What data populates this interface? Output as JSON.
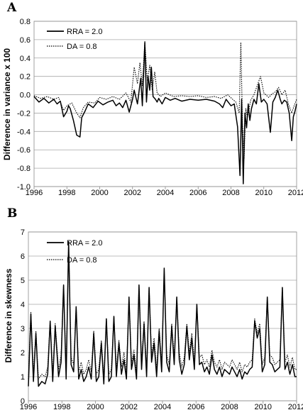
{
  "chart_data": [
    {
      "panel": "A",
      "type": "line",
      "ylabel": "Difference in variance x 100",
      "ylim": [
        -1.0,
        0.8
      ],
      "yticks": [
        -1.0,
        -0.8,
        -0.6,
        -0.4,
        -0.2,
        0.0,
        0.2,
        0.4,
        0.6,
        0.8
      ],
      "ytick_labels": [
        "-1.0",
        "-0.8",
        "-0.6",
        "-0.4",
        "-0.2",
        "0.0",
        "0.2",
        "0.4",
        "0.6",
        "0.8"
      ],
      "xlim": [
        1996,
        2012
      ],
      "xticks": [
        1996,
        1998,
        2000,
        2002,
        2004,
        2006,
        2008,
        2010,
        2012
      ],
      "xtick_labels": [
        "1996",
        "1998",
        "2000",
        "2002",
        "2004",
        "2006",
        "2008",
        "2010",
        "2012"
      ],
      "grid": "horizontal",
      "legend_position": "top-left",
      "series": [
        {
          "name": "RRA = 2.0",
          "style": "solid",
          "x": [
            1996.0,
            1996.3,
            1996.6,
            1996.9,
            1997.2,
            1997.4,
            1997.6,
            1997.8,
            1998.0,
            1998.1,
            1998.2,
            1998.4,
            1998.6,
            1998.8,
            1998.9,
            1999.1,
            1999.3,
            1999.6,
            1999.9,
            2000.2,
            2000.5,
            2000.8,
            2001.0,
            2001.2,
            2001.4,
            2001.6,
            2001.8,
            2002.0,
            2002.1,
            2002.3,
            2002.5,
            2002.6,
            2002.75,
            2002.85,
            2002.95,
            2003.05,
            2003.15,
            2003.25,
            2003.4,
            2003.5,
            2003.6,
            2003.8,
            2004.0,
            2004.3,
            2004.6,
            2005.0,
            2005.5,
            2006.0,
            2006.5,
            2007.0,
            2007.3,
            2007.5,
            2007.7,
            2008.0,
            2008.2,
            2008.4,
            2008.55,
            2008.65,
            2008.75,
            2008.85,
            2008.95,
            2009.05,
            2009.15,
            2009.25,
            2009.4,
            2009.55,
            2009.7,
            2009.85,
            2010.0,
            2010.2,
            2010.4,
            2010.55,
            2010.7,
            2010.85,
            2011.0,
            2011.1,
            2011.25,
            2011.4,
            2011.55,
            2011.7,
            2011.8,
            2011.9,
            2012.0
          ],
          "y": [
            -0.02,
            -0.08,
            -0.04,
            -0.09,
            -0.05,
            -0.1,
            -0.07,
            -0.24,
            -0.18,
            -0.12,
            -0.15,
            -0.28,
            -0.44,
            -0.46,
            -0.25,
            -0.18,
            -0.1,
            -0.14,
            -0.07,
            -0.11,
            -0.08,
            -0.06,
            -0.12,
            -0.09,
            -0.14,
            -0.06,
            -0.19,
            -0.05,
            0.05,
            -0.1,
            0.18,
            -0.12,
            0.57,
            -0.08,
            0.2,
            0.05,
            0.3,
            -0.02,
            -0.05,
            -0.08,
            -0.04,
            -0.1,
            -0.03,
            -0.06,
            -0.04,
            -0.07,
            -0.05,
            -0.06,
            -0.05,
            -0.07,
            -0.1,
            -0.14,
            -0.05,
            -0.12,
            -0.1,
            -0.35,
            -0.88,
            -0.05,
            -0.97,
            -0.2,
            -0.36,
            -0.1,
            -0.28,
            -0.15,
            -0.05,
            -0.1,
            0.12,
            -0.08,
            -0.05,
            -0.1,
            -0.41,
            -0.08,
            -0.03,
            0.05,
            -0.05,
            -0.1,
            -0.06,
            -0.08,
            -0.2,
            -0.5,
            -0.24,
            -0.18,
            -0.1
          ]
        },
        {
          "name": "DA = 0.8",
          "style": "dotted",
          "x": [
            1996.0,
            1996.4,
            1996.8,
            1997.2,
            1997.5,
            1997.8,
            1998.0,
            1998.3,
            1998.6,
            1998.8,
            1999.0,
            1999.3,
            1999.7,
            2000.0,
            2000.4,
            2000.8,
            2001.2,
            2001.6,
            2001.9,
            2002.1,
            2002.3,
            2002.45,
            2002.6,
            2002.75,
            2002.9,
            2003.05,
            2003.2,
            2003.35,
            2003.5,
            2003.7,
            2004.0,
            2004.5,
            2005.0,
            2005.5,
            2006.0,
            2006.5,
            2007.0,
            2007.4,
            2007.8,
            2008.1,
            2008.3,
            2008.5,
            2008.6,
            2008.7,
            2008.8,
            2008.9,
            2009.0,
            2009.2,
            2009.4,
            2009.6,
            2009.8,
            2010.0,
            2010.3,
            2010.5,
            2010.7,
            2010.9,
            2011.1,
            2011.3,
            2011.5,
            2011.7,
            2011.85,
            2012.0
          ],
          "y": [
            -0.01,
            -0.04,
            -0.02,
            -0.05,
            -0.03,
            -0.17,
            -0.12,
            -0.09,
            -0.2,
            -0.25,
            -0.14,
            -0.08,
            -0.09,
            -0.03,
            -0.05,
            -0.02,
            -0.05,
            0.02,
            -0.08,
            0.3,
            0.12,
            0.35,
            0.1,
            0.58,
            0.15,
            0.32,
            0.05,
            0.25,
            0.02,
            -0.02,
            0.02,
            -0.02,
            -0.01,
            -0.02,
            -0.01,
            -0.03,
            -0.02,
            -0.04,
            0.0,
            -0.05,
            -0.08,
            -0.2,
            0.57,
            -0.3,
            -0.7,
            -0.15,
            -0.25,
            -0.06,
            0.0,
            0.1,
            0.2,
            0.02,
            -0.03,
            0.01,
            0.03,
            0.08,
            0.0,
            0.05,
            -0.1,
            -0.2,
            -0.12,
            -0.05
          ]
        }
      ]
    },
    {
      "panel": "B",
      "type": "line",
      "ylabel": "Difference in skewness",
      "ylim": [
        0,
        7
      ],
      "yticks": [
        0,
        1,
        2,
        3,
        4,
        5,
        6,
        7
      ],
      "ytick_labels": [
        "0",
        "1",
        "2",
        "3",
        "4",
        "5",
        "6",
        "7"
      ],
      "xlim": [
        1996,
        2012
      ],
      "xticks": [
        1996,
        1998,
        2000,
        2002,
        2004,
        2006,
        2008,
        2010,
        2012
      ],
      "xtick_labels": [
        "1996",
        "1998",
        "2000",
        "2002",
        "2004",
        "2006",
        "2008",
        "2010",
        "2012"
      ],
      "grid": "horizontal",
      "legend_position": "top-left",
      "series": [
        {
          "name": "RRA = 2.0",
          "style": "solid",
          "x": [
            1996.0,
            1996.15,
            1996.3,
            1996.45,
            1996.6,
            1996.8,
            1997.0,
            1997.15,
            1997.3,
            1997.45,
            1997.6,
            1997.8,
            1997.95,
            1998.1,
            1998.25,
            1998.4,
            1998.55,
            1998.7,
            1998.85,
            1999.0,
            1999.15,
            1999.3,
            1999.45,
            1999.6,
            1999.75,
            1999.9,
            2000.05,
            2000.2,
            2000.35,
            2000.5,
            2000.65,
            2000.8,
            2000.95,
            2001.1,
            2001.25,
            2001.4,
            2001.55,
            2001.7,
            2001.85,
            2002.0,
            2002.15,
            2002.3,
            2002.45,
            2002.6,
            2002.75,
            2002.9,
            2003.05,
            2003.2,
            2003.35,
            2003.5,
            2003.65,
            2003.8,
            2003.95,
            2004.1,
            2004.25,
            2004.4,
            2004.55,
            2004.7,
            2004.85,
            2005.0,
            2005.15,
            2005.3,
            2005.45,
            2005.6,
            2005.75,
            2005.9,
            2006.05,
            2006.2,
            2006.35,
            2006.5,
            2006.65,
            2006.8,
            2006.95,
            2007.1,
            2007.25,
            2007.4,
            2007.55,
            2007.7,
            2007.85,
            2008.0,
            2008.15,
            2008.3,
            2008.45,
            2008.6,
            2008.75,
            2008.9,
            2009.05,
            2009.2,
            2009.35,
            2009.5,
            2009.65,
            2009.8,
            2009.95,
            2010.1,
            2010.25,
            2010.4,
            2010.55,
            2010.7,
            2010.85,
            2011.0,
            2011.15,
            2011.3,
            2011.45,
            2011.6,
            2011.75,
            2011.9,
            2012.0
          ],
          "y": [
            0.6,
            3.6,
            0.8,
            2.8,
            0.6,
            0.8,
            0.7,
            1.1,
            3.3,
            0.8,
            3.1,
            1.0,
            1.6,
            4.8,
            0.9,
            6.6,
            1.5,
            1.2,
            3.9,
            0.9,
            1.3,
            0.8,
            1.0,
            1.4,
            0.9,
            2.8,
            0.8,
            1.0,
            2.4,
            0.7,
            3.4,
            0.8,
            1.0,
            3.5,
            1.0,
            2.4,
            1.1,
            1.7,
            0.9,
            4.3,
            1.3,
            1.9,
            0.9,
            4.8,
            1.3,
            3.2,
            1.0,
            4.7,
            1.6,
            2.4,
            1.0,
            2.9,
            1.2,
            5.5,
            1.6,
            1.2,
            3.1,
            1.5,
            4.3,
            1.7,
            1.1,
            1.5,
            3.1,
            1.7,
            2.6,
            1.3,
            4.0,
            1.5,
            1.6,
            1.2,
            1.4,
            1.1,
            1.9,
            1.3,
            1.1,
            1.4,
            1.0,
            1.3,
            1.2,
            1.1,
            1.4,
            1.2,
            1.0,
            1.3,
            0.9,
            1.2,
            1.1,
            1.3,
            1.4,
            3.3,
            2.6,
            3.0,
            1.2,
            1.5,
            4.3,
            1.6,
            1.5,
            1.2,
            1.3,
            1.4,
            4.7,
            1.3,
            1.6,
            1.1,
            1.5,
            1.0,
            1.0
          ]
        },
        {
          "name": "DA = 0.8",
          "style": "dotted",
          "x": [
            1996.0,
            1996.15,
            1996.3,
            1996.45,
            1996.6,
            1996.8,
            1997.0,
            1997.15,
            1997.3,
            1997.45,
            1997.6,
            1997.8,
            1997.95,
            1998.1,
            1998.25,
            1998.4,
            1998.55,
            1998.7,
            1998.85,
            1999.0,
            1999.15,
            1999.3,
            1999.45,
            1999.6,
            1999.75,
            1999.9,
            2000.05,
            2000.2,
            2000.35,
            2000.5,
            2000.65,
            2000.8,
            2000.95,
            2001.1,
            2001.25,
            2001.4,
            2001.55,
            2001.7,
            2001.85,
            2002.0,
            2002.15,
            2002.3,
            2002.45,
            2002.6,
            2002.75,
            2002.9,
            2003.05,
            2003.2,
            2003.35,
            2003.5,
            2003.65,
            2003.8,
            2003.95,
            2004.1,
            2004.25,
            2004.4,
            2004.55,
            2004.7,
            2004.85,
            2005.0,
            2005.15,
            2005.3,
            2005.45,
            2005.6,
            2005.75,
            2005.9,
            2006.05,
            2006.2,
            2006.35,
            2006.5,
            2006.65,
            2006.8,
            2006.95,
            2007.1,
            2007.25,
            2007.4,
            2007.55,
            2007.7,
            2007.85,
            2008.0,
            2008.15,
            2008.3,
            2008.45,
            2008.6,
            2008.75,
            2008.9,
            2009.05,
            2009.2,
            2009.35,
            2009.5,
            2009.65,
            2009.8,
            2009.95,
            2010.1,
            2010.25,
            2010.4,
            2010.55,
            2010.7,
            2010.85,
            2011.0,
            2011.15,
            2011.3,
            2011.45,
            2011.6,
            2011.75,
            2011.9,
            2012.0
          ],
          "y": [
            0.9,
            3.7,
            1.1,
            2.9,
            0.9,
            1.1,
            1.0,
            1.4,
            3.3,
            1.1,
            3.2,
            1.3,
            1.9,
            4.8,
            1.2,
            6.5,
            1.8,
            1.5,
            3.9,
            1.2,
            1.6,
            1.1,
            1.3,
            1.7,
            1.2,
            2.9,
            1.1,
            1.3,
            2.5,
            1.0,
            3.4,
            1.1,
            1.3,
            3.5,
            1.3,
            2.5,
            1.4,
            2.0,
            1.2,
            4.3,
            1.6,
            2.1,
            1.2,
            4.8,
            1.6,
            3.3,
            1.3,
            4.7,
            1.9,
            2.6,
            1.3,
            3.0,
            1.5,
            5.4,
            1.9,
            1.5,
            3.2,
            1.8,
            4.3,
            2.0,
            1.4,
            1.8,
            3.2,
            2.0,
            2.8,
            1.6,
            4.0,
            1.8,
            1.9,
            1.5,
            1.7,
            1.4,
            2.1,
            1.6,
            1.4,
            1.7,
            1.3,
            1.6,
            1.5,
            1.4,
            1.7,
            1.5,
            1.3,
            1.6,
            1.2,
            1.5,
            1.4,
            1.6,
            1.7,
            3.4,
            2.8,
            3.2,
            1.5,
            1.8,
            4.3,
            1.9,
            1.8,
            1.5,
            1.6,
            1.7,
            4.7,
            1.6,
            1.9,
            1.4,
            1.8,
            1.3,
            1.3
          ]
        }
      ]
    }
  ]
}
